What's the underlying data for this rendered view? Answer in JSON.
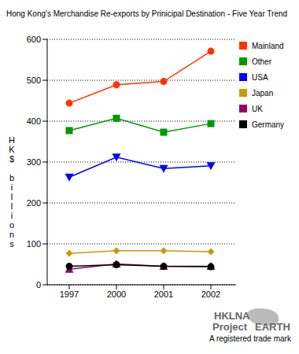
{
  "chart_data": {
    "type": "line",
    "title": "Hong Kong's Merchandise Re-exports by Prinicipal Destination - Five Year Trend",
    "y_label": "HK$ billions",
    "categories": [
      "1997",
      "2000",
      "2001",
      "2002"
    ],
    "series": [
      {
        "name": "Mainland",
        "color": "#ff3300",
        "marker": "circle",
        "values": [
          444,
          489,
          497,
          571
        ]
      },
      {
        "name": "Other",
        "color": "#009900",
        "marker": "square",
        "values": [
          377,
          407,
          373,
          394
        ]
      },
      {
        "name": "USA",
        "color": "#0000ff",
        "marker": "triangle-down",
        "values": [
          263,
          312,
          284,
          291
        ]
      },
      {
        "name": "Japan",
        "color": "#cc9900",
        "marker": "diamond",
        "values": [
          77,
          83,
          83,
          81
        ]
      },
      {
        "name": "UK",
        "color": "#990066",
        "marker": "triangle-up",
        "values": [
          38,
          51,
          45,
          45
        ]
      },
      {
        "name": "Germany",
        "color": "#000000",
        "marker": "circle",
        "values": [
          45,
          49,
          45,
          44
        ]
      }
    ],
    "ylim": [
      0,
      600
    ],
    "yticks": [
      0,
      100,
      200,
      300,
      400,
      500,
      600
    ],
    "grid": true,
    "legend": "right",
    "annotations": [
      "HKLNA",
      "Project",
      "EARTH",
      "A registered trade mark"
    ]
  }
}
